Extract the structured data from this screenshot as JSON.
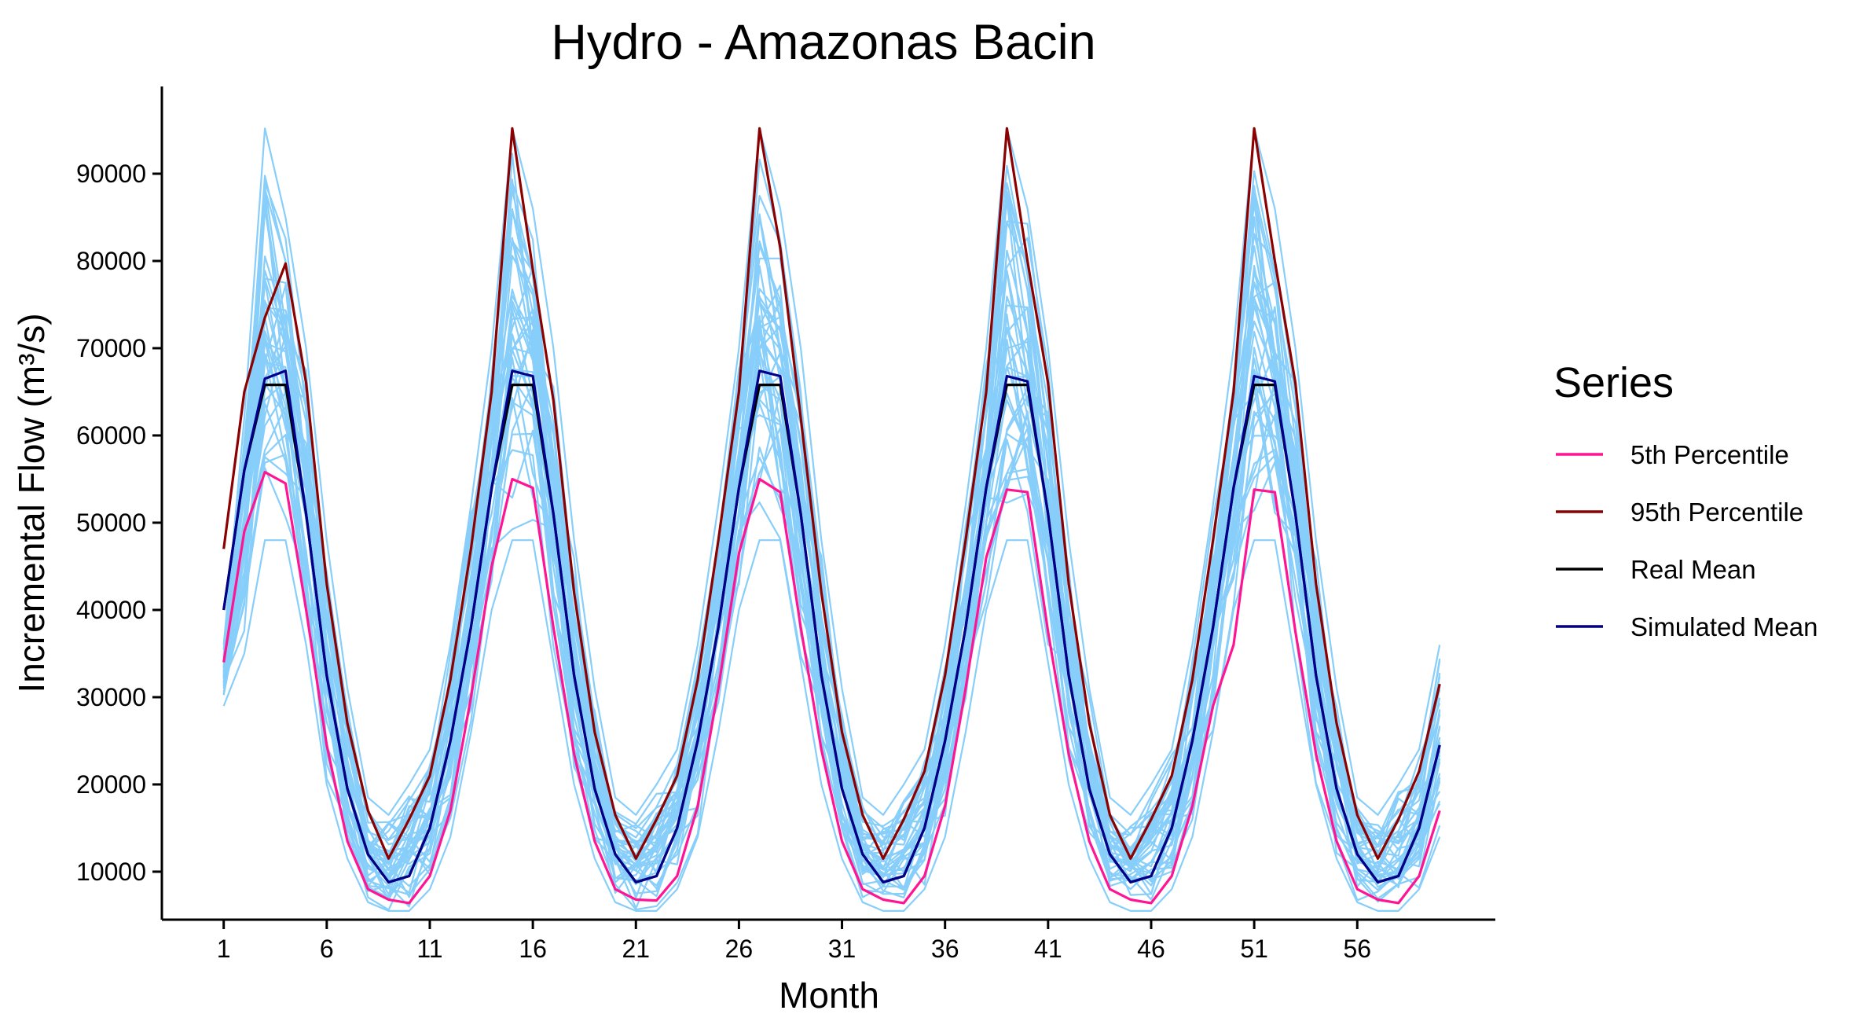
{
  "chart_data": {
    "type": "line",
    "title": "Hydro - Amazonas Bacin",
    "xlabel": "Month",
    "ylabel": "Incremental Flow (m³/s)",
    "x": [
      1,
      2,
      3,
      4,
      5,
      6,
      7,
      8,
      9,
      10,
      11,
      12,
      13,
      14,
      15,
      16,
      17,
      18,
      19,
      20,
      21,
      22,
      23,
      24,
      25,
      26,
      27,
      28,
      29,
      30,
      31,
      32,
      33,
      34,
      35,
      36,
      37,
      38,
      39,
      40,
      41,
      42,
      43,
      44,
      45,
      46,
      47,
      48,
      49,
      50,
      51,
      52,
      53,
      54,
      55,
      56,
      57,
      58,
      59,
      60
    ],
    "xticks": [
      1,
      6,
      11,
      16,
      21,
      26,
      31,
      36,
      41,
      46,
      51,
      56
    ],
    "yticks": [
      10000,
      20000,
      30000,
      40000,
      50000,
      60000,
      70000,
      80000,
      90000
    ],
    "xlim": [
      -2,
      62.7
    ],
    "ylim": [
      4500,
      100000
    ],
    "grid": false,
    "legend": {
      "title": "Series",
      "position": "right"
    },
    "series": [
      {
        "name": "5th Percentile",
        "color": "#FF1493",
        "values": [
          34000,
          49000,
          55800,
          54500,
          40000,
          24500,
          13500,
          8000,
          6800,
          6400,
          9500,
          17000,
          30000,
          45000,
          55000,
          54000,
          38000,
          23500,
          13500,
          8000,
          6800,
          6700,
          9500,
          17500,
          31000,
          46500,
          55000,
          53500,
          38000,
          24000,
          13500,
          8000,
          6800,
          6400,
          9500,
          17500,
          31000,
          46000,
          53800,
          53500,
          37500,
          23500,
          13500,
          8000,
          6800,
          6400,
          9500,
          17500,
          29000,
          36000,
          53800,
          53500,
          37500,
          23500,
          13500,
          8000,
          6800,
          6400,
          9500,
          17000
        ]
      },
      {
        "name": "95th Percentile",
        "color": "#8B0000",
        "values": [
          47000,
          65000,
          73500,
          79700,
          66000,
          43000,
          27000,
          17000,
          11500,
          16000,
          21000,
          32000,
          47000,
          65000,
          95200,
          79000,
          64000,
          42000,
          26000,
          16500,
          11500,
          16000,
          21000,
          32000,
          48000,
          65000,
          95200,
          81500,
          62000,
          42000,
          26000,
          16500,
          11500,
          16000,
          21500,
          32500,
          48000,
          65000,
          95200,
          80000,
          66000,
          43000,
          27000,
          16500,
          11500,
          16000,
          21000,
          32000,
          48000,
          65000,
          95200,
          80000,
          66000,
          43000,
          27000,
          16500,
          11500,
          16000,
          21500,
          31500
        ]
      },
      {
        "name": "Real Mean",
        "color": "#000000",
        "values": [
          40000,
          56000,
          65800,
          65800,
          51000,
          32500,
          19500,
          12000,
          8800,
          9500,
          15000,
          25000,
          38000,
          54000,
          65800,
          65800,
          51000,
          32500,
          19500,
          12000,
          8800,
          9500,
          15000,
          25000,
          38000,
          54000,
          65800,
          65800,
          51000,
          32500,
          19500,
          12000,
          8800,
          9500,
          15000,
          25000,
          38000,
          54000,
          65800,
          65800,
          51000,
          32500,
          19500,
          12000,
          8800,
          9500,
          15000,
          25000,
          38000,
          54000,
          65800,
          65800,
          51000,
          32500,
          19500,
          12000,
          8800,
          9500,
          15000,
          24500
        ]
      },
      {
        "name": "Simulated Mean",
        "color": "#00008B",
        "values": [
          40000,
          56000,
          66500,
          67400,
          51000,
          32500,
          19500,
          12000,
          8800,
          9500,
          15000,
          25000,
          38000,
          54000,
          67400,
          66800,
          51000,
          32500,
          19500,
          12000,
          8800,
          9500,
          15000,
          25000,
          38000,
          54000,
          67400,
          66800,
          51000,
          32500,
          19500,
          12000,
          8800,
          9500,
          15000,
          25000,
          38000,
          54000,
          66800,
          66200,
          51000,
          32500,
          19500,
          12000,
          8800,
          9500,
          15000,
          25000,
          38000,
          54000,
          66800,
          66200,
          51000,
          32500,
          19500,
          12000,
          8800,
          9500,
          15000,
          24500
        ]
      }
    ],
    "simulations": {
      "color": "#87CEFA",
      "min": [
        29000,
        35000,
        48000,
        48000,
        36000,
        20000,
        11500,
        6500,
        5500,
        5500,
        8000,
        14000,
        26000,
        40000,
        48000,
        48000,
        34000,
        20000,
        11500,
        6500,
        5500,
        5500,
        8000,
        14000,
        26000,
        40000,
        48000,
        48000,
        34000,
        20000,
        11500,
        6500,
        5500,
        5500,
        8000,
        14000,
        26000,
        40000,
        48000,
        48000,
        34000,
        20000,
        11500,
        6500,
        5500,
        5500,
        8000,
        14000,
        26000,
        40000,
        48000,
        48000,
        34000,
        20000,
        11500,
        6500,
        5500,
        5500,
        8000,
        14000
      ],
      "max": [
        36000,
        62000,
        95200,
        85000,
        70000,
        48000,
        31000,
        18500,
        16500,
        20000,
        24000,
        36000,
        52000,
        70000,
        95200,
        86000,
        70000,
        48000,
        31000,
        18500,
        16500,
        20000,
        24000,
        36000,
        52000,
        70000,
        95200,
        86000,
        70000,
        48000,
        31000,
        18500,
        16500,
        20000,
        24000,
        36000,
        52000,
        70000,
        95200,
        86000,
        70000,
        48000,
        31000,
        18500,
        16500,
        20000,
        24000,
        36000,
        52000,
        70000,
        95200,
        86000,
        70000,
        48000,
        31000,
        18500,
        16500,
        20000,
        24000,
        36000
      ]
    }
  }
}
